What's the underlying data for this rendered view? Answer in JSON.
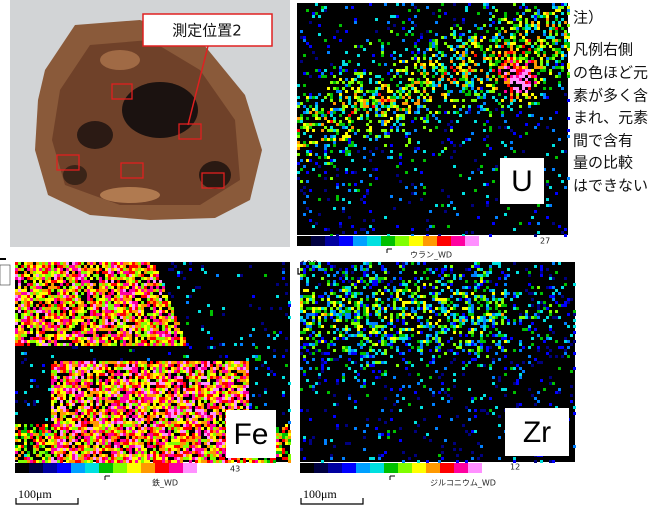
{
  "photo": {
    "label": "測定位置2"
  },
  "maps": [
    {
      "element": "U",
      "scale_max": 27,
      "legend": "ウラン_WD",
      "scale_bar": "100μm"
    },
    {
      "element": "Fe",
      "scale_max": 43,
      "legend": "鉄_WD",
      "scale_bar": "100μm"
    },
    {
      "element": "Zr",
      "scale_max": 12,
      "legend": "ジルコニウム_WD",
      "scale_bar": "100μm"
    }
  ],
  "note": [
    "注）",
    "凡例右側",
    "の色ほど元",
    "素が多く含",
    "まれ、元素",
    "間で含有",
    "量の比較",
    "はできない"
  ]
}
